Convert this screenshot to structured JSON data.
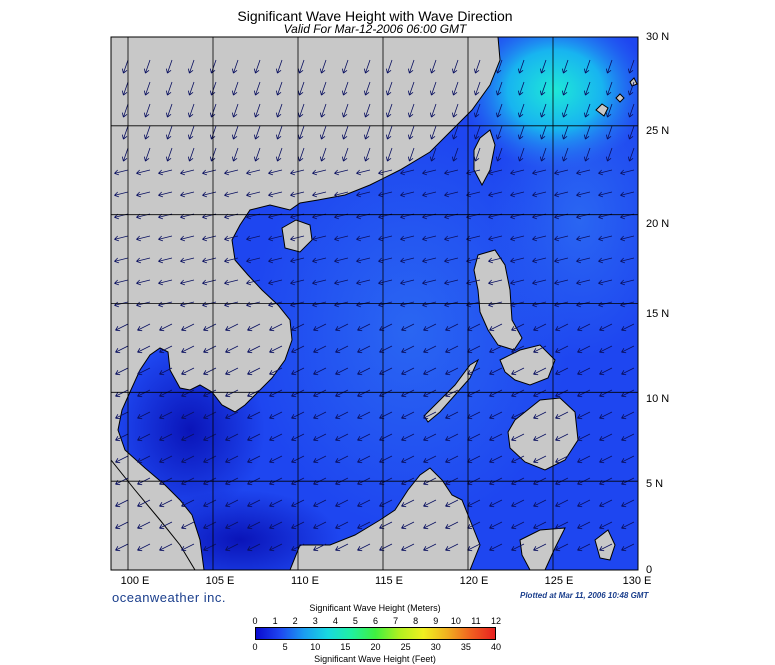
{
  "header": {
    "title": "Significant Wave Height with Wave Direction",
    "subtitle": "Valid For Mar-12-2006 06:00 GMT"
  },
  "map": {
    "lon_range": [
      99,
      130
    ],
    "lat_range": [
      0,
      30
    ],
    "lat_labels": [
      "30 N",
      "25 N",
      "20 N",
      "15 N",
      "10 N",
      "5 N",
      "0"
    ],
    "lon_labels": [
      "100 E",
      "105 E",
      "110 E",
      "115 E",
      "120 E",
      "125 E",
      "130 E"
    ],
    "land_color": "#c8c8c8",
    "wave_direction": "from northeast",
    "colors": {
      "deep": "#0a1ec8",
      "mid": "#1e46f0",
      "light": "#2c72f5",
      "bright": "#18b4f0",
      "peak": "#1ee8d8"
    }
  },
  "footer": {
    "brand": "oceanweather inc.",
    "plotted": "Plotted at Mar 11, 2006 10:48 GMT"
  },
  "colorbar": {
    "title_meters": "Significant Wave Height (Meters)",
    "title_feet": "Significant Wave Height (Feet)",
    "meter_ticks": [
      "0",
      "1",
      "2",
      "3",
      "4",
      "5",
      "6",
      "7",
      "8",
      "9",
      "10",
      "11",
      "12"
    ],
    "feet_ticks": [
      "0",
      "5",
      "10",
      "15",
      "20",
      "25",
      "30",
      "35",
      "40"
    ],
    "gradient": [
      "#0a0ad0",
      "#1e46f0",
      "#1a9cf0",
      "#18d8e0",
      "#20f0a0",
      "#40f040",
      "#b0f020",
      "#f0f020",
      "#f0b020",
      "#f06020",
      "#e82020"
    ]
  }
}
